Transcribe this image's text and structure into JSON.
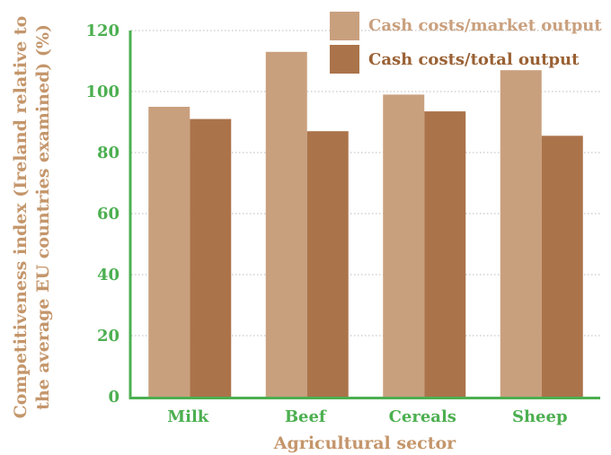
{
  "chart_data": {
    "type": "bar",
    "categories": [
      "Milk",
      "Beef",
      "Cereals",
      "Sheep"
    ],
    "series": [
      {
        "name": "Cash costs/market output",
        "values": [
          95,
          113,
          99,
          107
        ],
        "color": "#c9a07e"
      },
      {
        "name": "Cash costs/total output",
        "values": [
          91,
          87,
          93.5,
          85.5
        ],
        "color": "#ab734a"
      }
    ],
    "xlabel": "Agricultural sector",
    "ylabel_line1": "Competitiveness index (Ireland relative to",
    "ylabel_line2": "the average EU countries examined) (%)",
    "ylim": [
      0,
      120
    ],
    "yticks": [
      "0",
      "20",
      "40",
      "60",
      "80",
      "100",
      "120"
    ],
    "grid": true,
    "legend_position": "top-right",
    "colors": {
      "axis": "#4caf50",
      "tick_text": "#4caf50",
      "axis_title": "#c4966b",
      "legend_text_market": "#c9a07e",
      "legend_text_total": "#9a6134"
    }
  }
}
